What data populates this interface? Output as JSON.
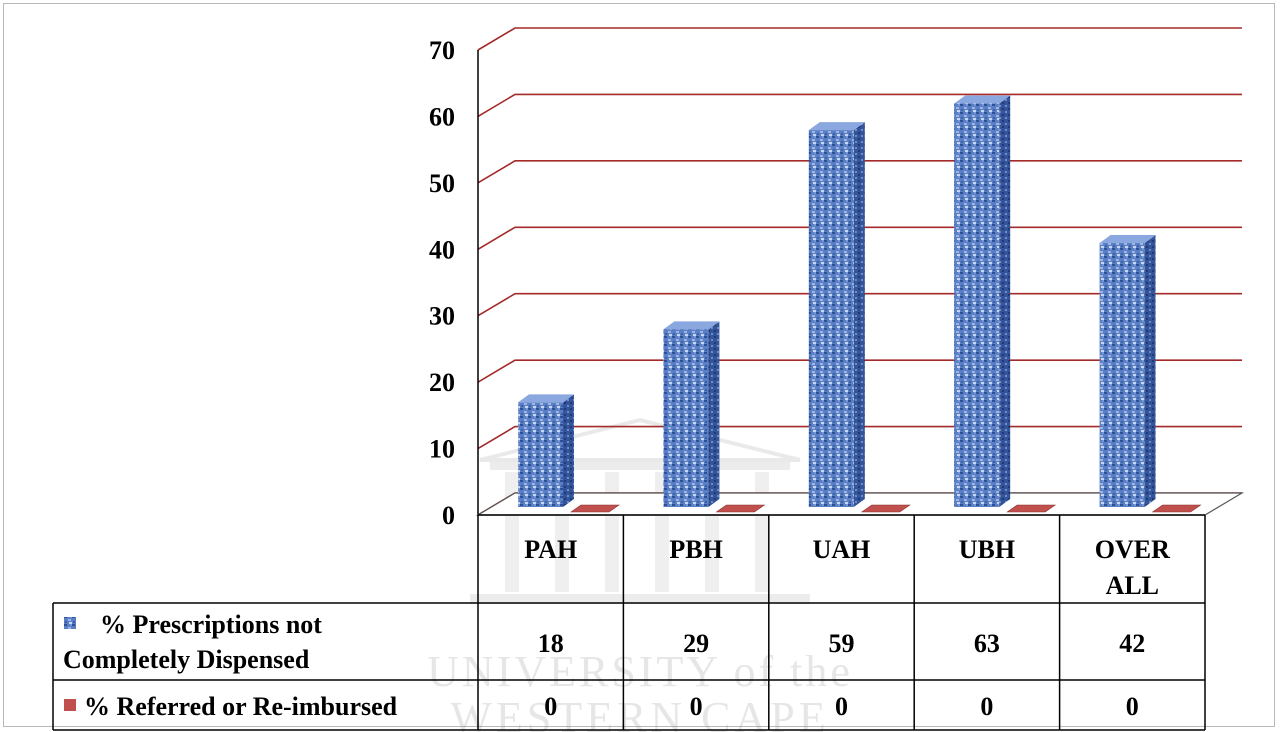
{
  "chart_data": {
    "type": "bar",
    "title": "",
    "xlabel": "",
    "ylabel": "",
    "ylim": [
      0,
      70
    ],
    "yticks": [
      0,
      10,
      20,
      30,
      40,
      50,
      60,
      70
    ],
    "categories": [
      "PAH",
      "PBH",
      "UAH",
      "UBH",
      "OVER ALL"
    ],
    "series": [
      {
        "name": "% Prescriptions not Completely Dispensed",
        "values": [
          18,
          29,
          59,
          63,
          42
        ],
        "color": "#5b7fc4"
      },
      {
        "name": "% Referred or Re-imbursed",
        "values": [
          0,
          0,
          0,
          0,
          0
        ],
        "color": "#c0504d"
      }
    ],
    "grid": true,
    "gridline_color": "#a52a2a",
    "legend": "data-table"
  },
  "watermark": {
    "line1": "UNIVERSITY of the",
    "line2": "WESTERN CAPE"
  }
}
